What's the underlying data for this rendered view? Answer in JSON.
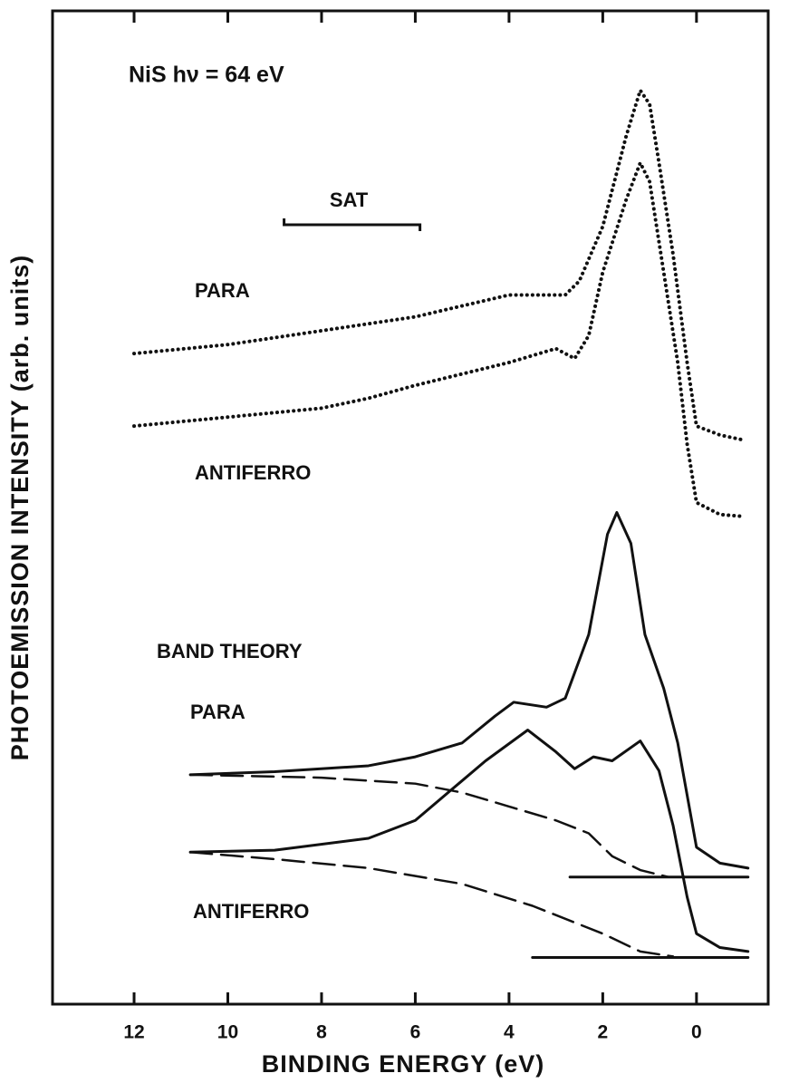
{
  "chart_data": {
    "type": "line",
    "xlabel": "BINDING ENERGY  (eV)",
    "ylabel": "PHOTOEMISSION INTENSITY (arb. units)",
    "xlim": [
      13.74,
      -1.53
    ],
    "ylim": [
      0,
      100
    ],
    "xticks": [
      12,
      10,
      8,
      6,
      4,
      2,
      0
    ],
    "annotations": [
      "NiS  hν = 64 eV",
      "SAT",
      "PARA",
      "ANTIFERRO",
      "BAND THEORY",
      "PARA",
      "ANTIFERRO"
    ],
    "sat_range": [
      8.8,
      5.9
    ],
    "series": [
      {
        "style": "dotted",
        "color": "#111",
        "x": [
          12,
          10,
          8,
          6,
          4,
          2.8,
          2.5,
          2,
          1.5,
          1.2,
          1.0,
          0.8,
          0.5,
          0.2,
          0,
          -0.5,
          -1
        ],
        "values": [
          65.5,
          66.4,
          67.8,
          69.2,
          71.4,
          71.4,
          72.8,
          78.3,
          87.4,
          92,
          90.6,
          84.7,
          75.5,
          64.6,
          58.2,
          57.3,
          56.8
        ]
      },
      {
        "style": "dotted",
        "color": "#111",
        "x": [
          12,
          10,
          8,
          7,
          6,
          4,
          3,
          2.6,
          2.3,
          2,
          1.5,
          1.2,
          1.0,
          0.7,
          0.4,
          0.2,
          0,
          -0.5,
          -1
        ],
        "values": [
          58.2,
          59.1,
          60,
          61,
          62.3,
          64.6,
          66,
          65,
          67.3,
          73.7,
          81,
          84.7,
          82.8,
          73.7,
          64.6,
          56.4,
          50.5,
          49.3,
          49.1
        ]
      },
      {
        "style": "solid",
        "color": "#111",
        "x": [
          10.8,
          9,
          7,
          6,
          5,
          4.3,
          3.9,
          3.2,
          2.8,
          2.3,
          1.9,
          1.7,
          1.4,
          1.1,
          0.7,
          0.4,
          0,
          -0.5,
          -1.1
        ],
        "values": [
          23.1,
          23.4,
          24,
          24.9,
          26.3,
          29,
          30.4,
          29.9,
          30.8,
          37.2,
          47.3,
          49.5,
          46.4,
          37.2,
          31.8,
          26.3,
          15.8,
          14.2,
          13.7
        ]
      },
      {
        "style": "dashed",
        "color": "#111",
        "x": [
          10.8,
          8,
          6,
          5,
          4,
          3,
          2.3,
          1.8,
          1.2,
          0.6
        ],
        "values": [
          23.1,
          22.8,
          22.2,
          21.3,
          19.9,
          18.5,
          17.2,
          14.9,
          13.5,
          12.8
        ]
      },
      {
        "style": "solid",
        "color": "#111",
        "x": [
          2.7,
          -1.1
        ],
        "values": [
          12.8,
          12.8
        ]
      },
      {
        "style": "solid",
        "color": "#111",
        "x": [
          10.8,
          9,
          7,
          6,
          5.2,
          4.5,
          3.6,
          3,
          2.6,
          2.2,
          1.8,
          1.2,
          0.8,
          0.5,
          0.2,
          0,
          -0.5,
          -1.1
        ],
        "values": [
          15.3,
          15.5,
          16.7,
          18.5,
          21.7,
          24.5,
          27.6,
          25.4,
          23.7,
          24.9,
          24.5,
          26.5,
          23.5,
          18,
          10.8,
          7.1,
          5.7,
          5.3
        ]
      },
      {
        "style": "dashed",
        "color": "#111",
        "x": [
          10.8,
          9,
          7,
          5,
          3.5,
          2,
          1.2,
          0.5
        ],
        "values": [
          15.3,
          14.6,
          13.7,
          12.1,
          9.9,
          7.1,
          5.3,
          4.8
        ]
      },
      {
        "style": "solid",
        "color": "#111",
        "x": [
          3.5,
          -1.1
        ],
        "values": [
          4.7,
          4.7
        ]
      }
    ]
  }
}
